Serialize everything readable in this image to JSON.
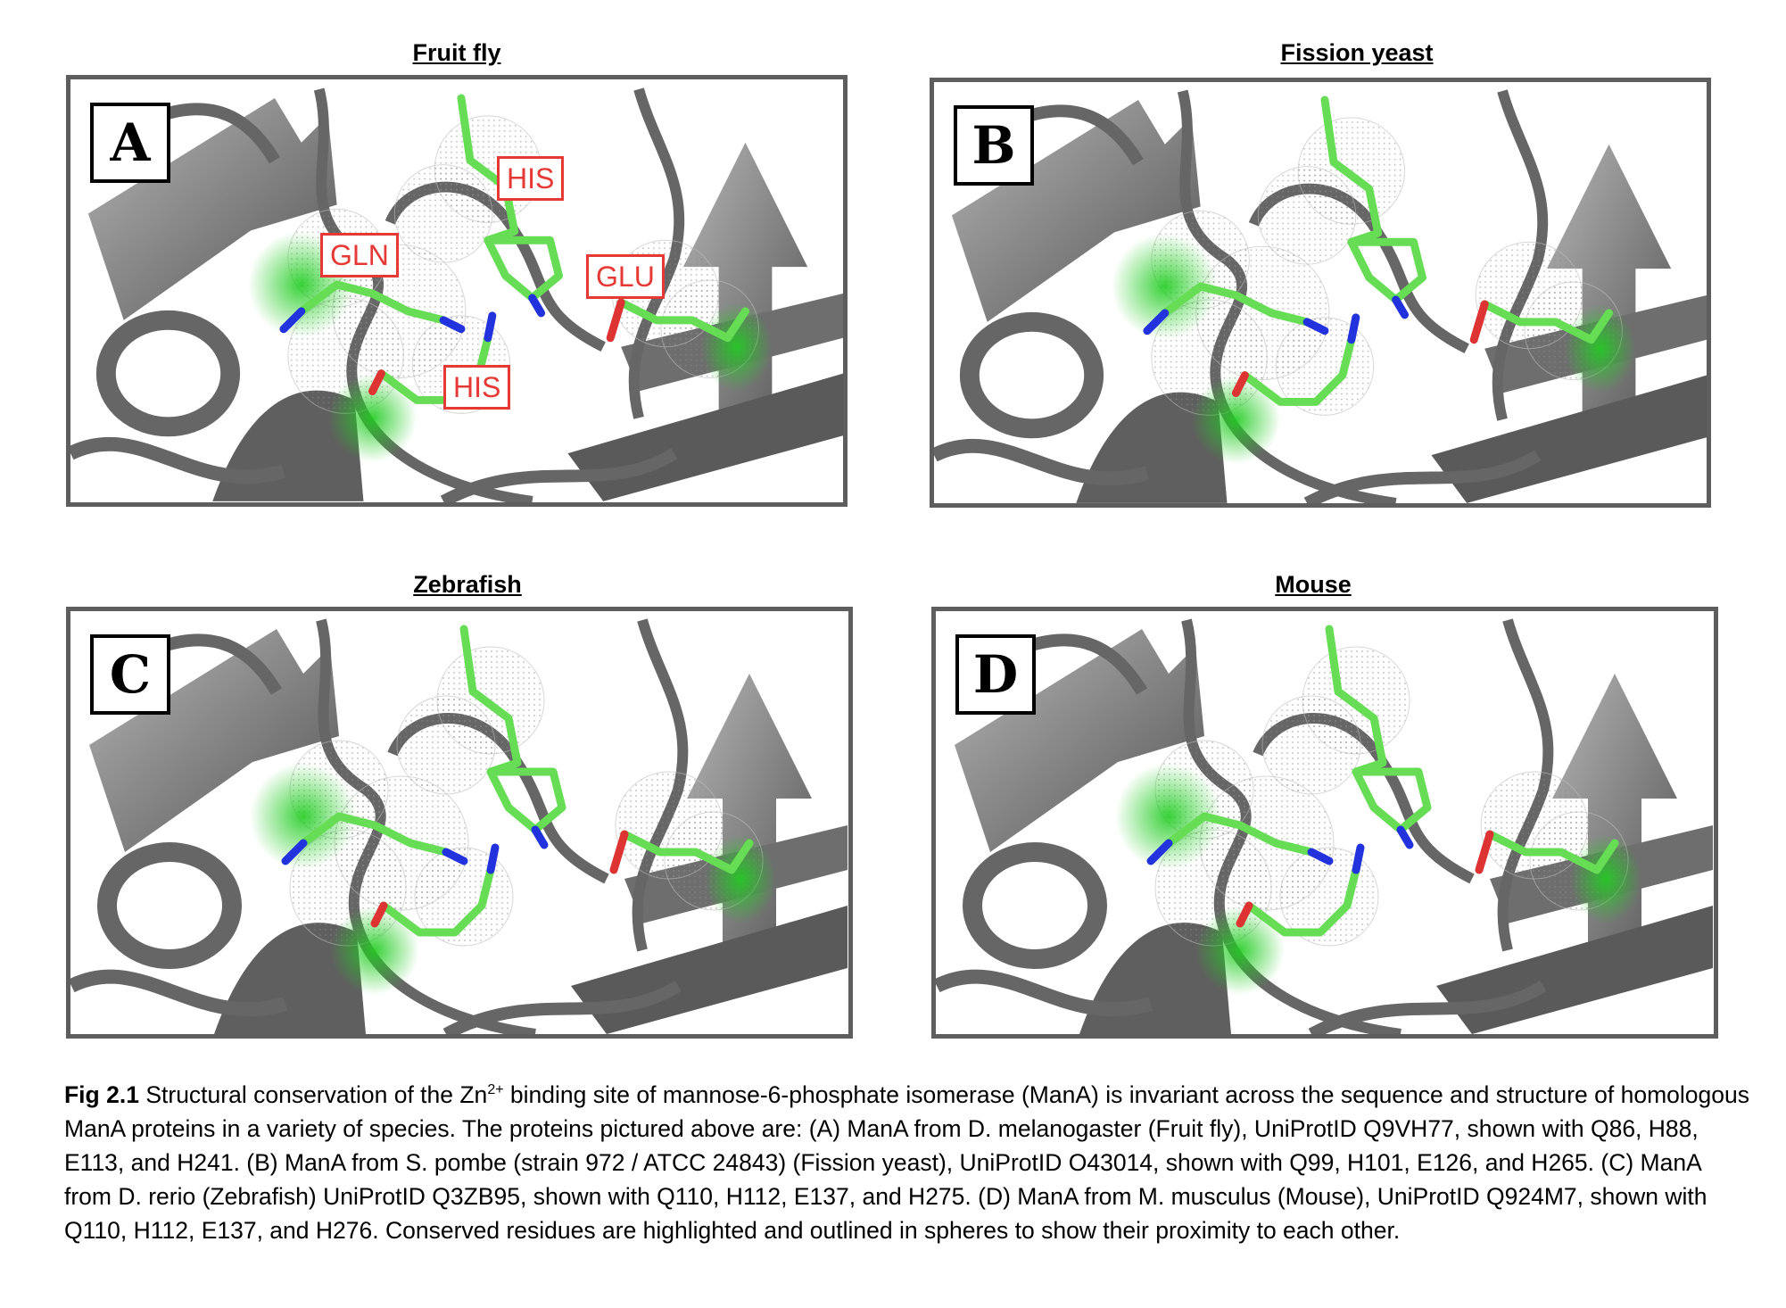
{
  "panels": [
    {
      "title": "Fruit fly",
      "letter": "A",
      "residue_labels": [
        "HIS",
        "GLN",
        "GLU",
        "HIS"
      ]
    },
    {
      "title": "Fission yeast",
      "letter": "B"
    },
    {
      "title": "Zebrafish",
      "letter": "C"
    },
    {
      "title": "Mouse",
      "letter": "D"
    }
  ],
  "caption": {
    "label": "Fig 2.1",
    "text_before_sup": "Structural conservation of the Zn",
    "sup": "2+",
    "text_after_sup": " binding site of mannose-6-phosphate isomerase (ManA) is invariant across the sequence and structure of homologous ManA proteins in a variety of species. The proteins pictured above are: (A) ManA from D. melanogaster (Fruit fly), UniProtID Q9VH77, shown with Q86, H88, E113, and H241. (B) ManA from S. pombe (strain 972 / ATCC 24843) (Fission yeast), UniProtID O43014, shown with Q99, H101, E126, and H265. (C) ManA from D. rerio (Zebrafish) UniProtID Q3ZB95, shown with Q110, H112, E137, and H275. (D) ManA from M. musculus (Mouse), UniProtID Q924M7, shown with Q110, H112, E137, and H276. Conserved residues are highlighted and outlined in spheres to show their proximity to each other."
  },
  "colors": {
    "ribbon": "#666666",
    "stick": "#66dd55",
    "highlight": "#22cc22",
    "nitrogen": "#2233dd",
    "oxygen": "#dd3333",
    "label": "#e53935"
  }
}
